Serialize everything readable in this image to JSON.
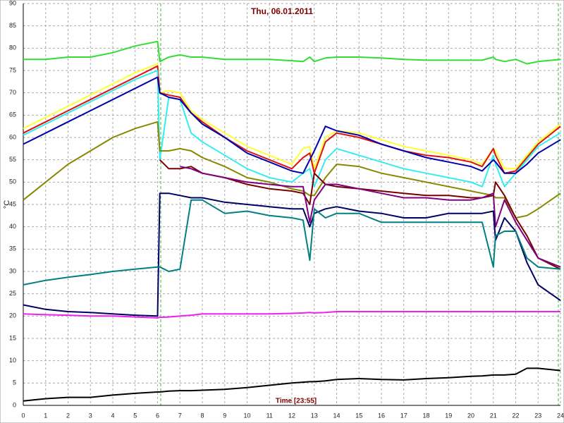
{
  "chart_data": {
    "type": "line",
    "title": "Thu, 06.01.2011",
    "x_label": "Time [23:55]",
    "y_label": "°C",
    "xlim": [
      0,
      24
    ],
    "ylim": [
      0,
      90
    ],
    "xticks": [
      0,
      1,
      2,
      3,
      4,
      5,
      6,
      7,
      8,
      9,
      10,
      11,
      12,
      13,
      14,
      15,
      16,
      17,
      18,
      19,
      20,
      21,
      22,
      23,
      24
    ],
    "yticks": [
      0,
      5,
      10,
      15,
      20,
      25,
      30,
      35,
      40,
      45,
      50,
      55,
      60,
      65,
      70,
      75,
      80,
      85,
      90
    ],
    "grid": true,
    "x": [
      0,
      1,
      2,
      3,
      4,
      5,
      6,
      6.1,
      6.5,
      7,
      7.5,
      8,
      9,
      10,
      11,
      12,
      12.5,
      12.8,
      13,
      13.5,
      14,
      15,
      16,
      17,
      18,
      19,
      20,
      20.5,
      21,
      21.1,
      21.5,
      22,
      22.5,
      23,
      24
    ],
    "series": [
      {
        "color": "#33dd33",
        "values": [
          77.5,
          77.5,
          78,
          78,
          79,
          80.5,
          81.5,
          77,
          78,
          78.5,
          78,
          78,
          77.5,
          77.5,
          77.5,
          77.2,
          77,
          78,
          77,
          77.8,
          78,
          78,
          77.8,
          77.5,
          77.3,
          77.3,
          77.3,
          77.3,
          78,
          77.5,
          77,
          77.5,
          76.5,
          77,
          77.5
        ]
      },
      {
        "color": "#ffff33",
        "values": [
          62,
          64.5,
          67,
          69.5,
          72,
          74.5,
          76.5,
          70,
          70.5,
          70,
          66,
          64,
          61,
          58,
          56,
          54,
          57.5,
          58,
          53,
          60,
          61.5,
          61,
          59.5,
          58,
          57,
          56,
          55,
          54,
          57.5,
          57,
          53,
          53,
          56,
          59,
          63
        ]
      },
      {
        "color": "#dd1111",
        "values": [
          61,
          63.5,
          66,
          68.5,
          71,
          73.5,
          76,
          70,
          69.5,
          69,
          65.5,
          63.5,
          60,
          57,
          55,
          53,
          55.5,
          56.5,
          52,
          59,
          61,
          60,
          58.5,
          57,
          56,
          55.5,
          54.5,
          53.5,
          57.5,
          56,
          52,
          52.5,
          55.5,
          58.5,
          62.5
        ]
      },
      {
        "color": "#33eeee",
        "values": [
          60.5,
          63,
          65.5,
          68,
          70.5,
          73,
          75,
          55,
          69,
          68.5,
          61,
          59,
          56,
          53,
          51,
          50,
          52,
          53,
          49,
          55,
          57.5,
          56,
          54.5,
          53,
          52,
          51,
          50,
          49,
          56,
          54,
          49,
          52,
          55,
          58,
          61
        ]
      },
      {
        "color": "#0000aa",
        "values": [
          58.5,
          61,
          63.5,
          66,
          68.5,
          71,
          73.5,
          70,
          69,
          68.5,
          65.5,
          63,
          60,
          56.5,
          54.5,
          52.5,
          52,
          55,
          57,
          62.5,
          61.5,
          60.5,
          58.5,
          57,
          55.5,
          54.5,
          53.5,
          52.5,
          55,
          54.5,
          52,
          52,
          54,
          56.5,
          59.5
        ]
      },
      {
        "color": "#888800",
        "values": [
          46,
          50,
          54,
          57,
          60,
          62,
          63.5,
          57,
          57,
          57.5,
          57,
          55.5,
          53.5,
          51,
          50,
          48.5,
          48,
          47,
          47,
          51,
          54,
          53.5,
          52,
          51,
          50,
          49,
          48,
          47.5,
          47,
          46.5,
          46.5,
          42,
          42.5,
          44,
          47.5
        ]
      },
      {
        "color": "#770000",
        "values": [
          null,
          null,
          null,
          null,
          null,
          null,
          null,
          55,
          53,
          53,
          53.5,
          52,
          51,
          49.5,
          48.5,
          48,
          47.5,
          45,
          52,
          49.5,
          49,
          48.5,
          48,
          47.5,
          47,
          47,
          46.5,
          46.5,
          47,
          50,
          47,
          42,
          38,
          33,
          30.5
        ]
      },
      {
        "color": "#800080",
        "values": [
          null,
          null,
          null,
          null,
          null,
          null,
          null,
          null,
          null,
          53.5,
          53,
          52,
          51,
          50,
          49.5,
          49,
          49,
          41,
          46,
          49.5,
          49.5,
          48.5,
          47.5,
          46.5,
          46.5,
          46,
          46,
          46.5,
          47.5,
          40,
          46,
          41,
          37,
          33,
          31
        ]
      },
      {
        "color": "#000066",
        "values": [
          22.5,
          21.5,
          21,
          20.8,
          20.5,
          20.2,
          20,
          47.5,
          47.5,
          47,
          46.5,
          46.5,
          45.5,
          45,
          44.5,
          44,
          44,
          40,
          43,
          44,
          44.5,
          43.5,
          43,
          42,
          42,
          43,
          43,
          43,
          43.5,
          37,
          42,
          39,
          32,
          27,
          23.5
        ]
      },
      {
        "color": "#008080",
        "values": [
          27,
          28,
          28.7,
          29.3,
          30,
          30.5,
          31,
          31,
          30,
          30.5,
          46,
          46,
          43,
          43.5,
          42.5,
          42,
          41.5,
          32.5,
          44,
          42,
          43,
          43,
          41,
          41,
          41,
          41,
          41,
          41,
          31,
          38,
          39,
          39,
          33,
          31,
          30.5
        ]
      },
      {
        "color": "#ee22ee",
        "values": [
          20.5,
          20.3,
          20.2,
          20,
          20,
          19.8,
          19.6,
          19.7,
          19.8,
          20,
          20.2,
          20.5,
          20.5,
          20.5,
          20.5,
          20.6,
          20.7,
          20.8,
          20.7,
          20.8,
          21,
          21,
          21,
          21,
          21,
          21,
          21,
          21,
          21,
          21,
          21,
          21,
          21,
          21,
          21
        ]
      },
      {
        "color": "#000000",
        "values": [
          1,
          1.5,
          1.8,
          1.8,
          2.3,
          2.7,
          3,
          3,
          3.2,
          3.3,
          3.3,
          3.4,
          3.6,
          4,
          4.5,
          5,
          5.2,
          5.3,
          5.3,
          5.5,
          5.8,
          6,
          5.8,
          5.7,
          6,
          6.2,
          6.5,
          6.6,
          6.8,
          6.8,
          6.8,
          7,
          8.3,
          8.3,
          7.8
        ]
      }
    ]
  }
}
